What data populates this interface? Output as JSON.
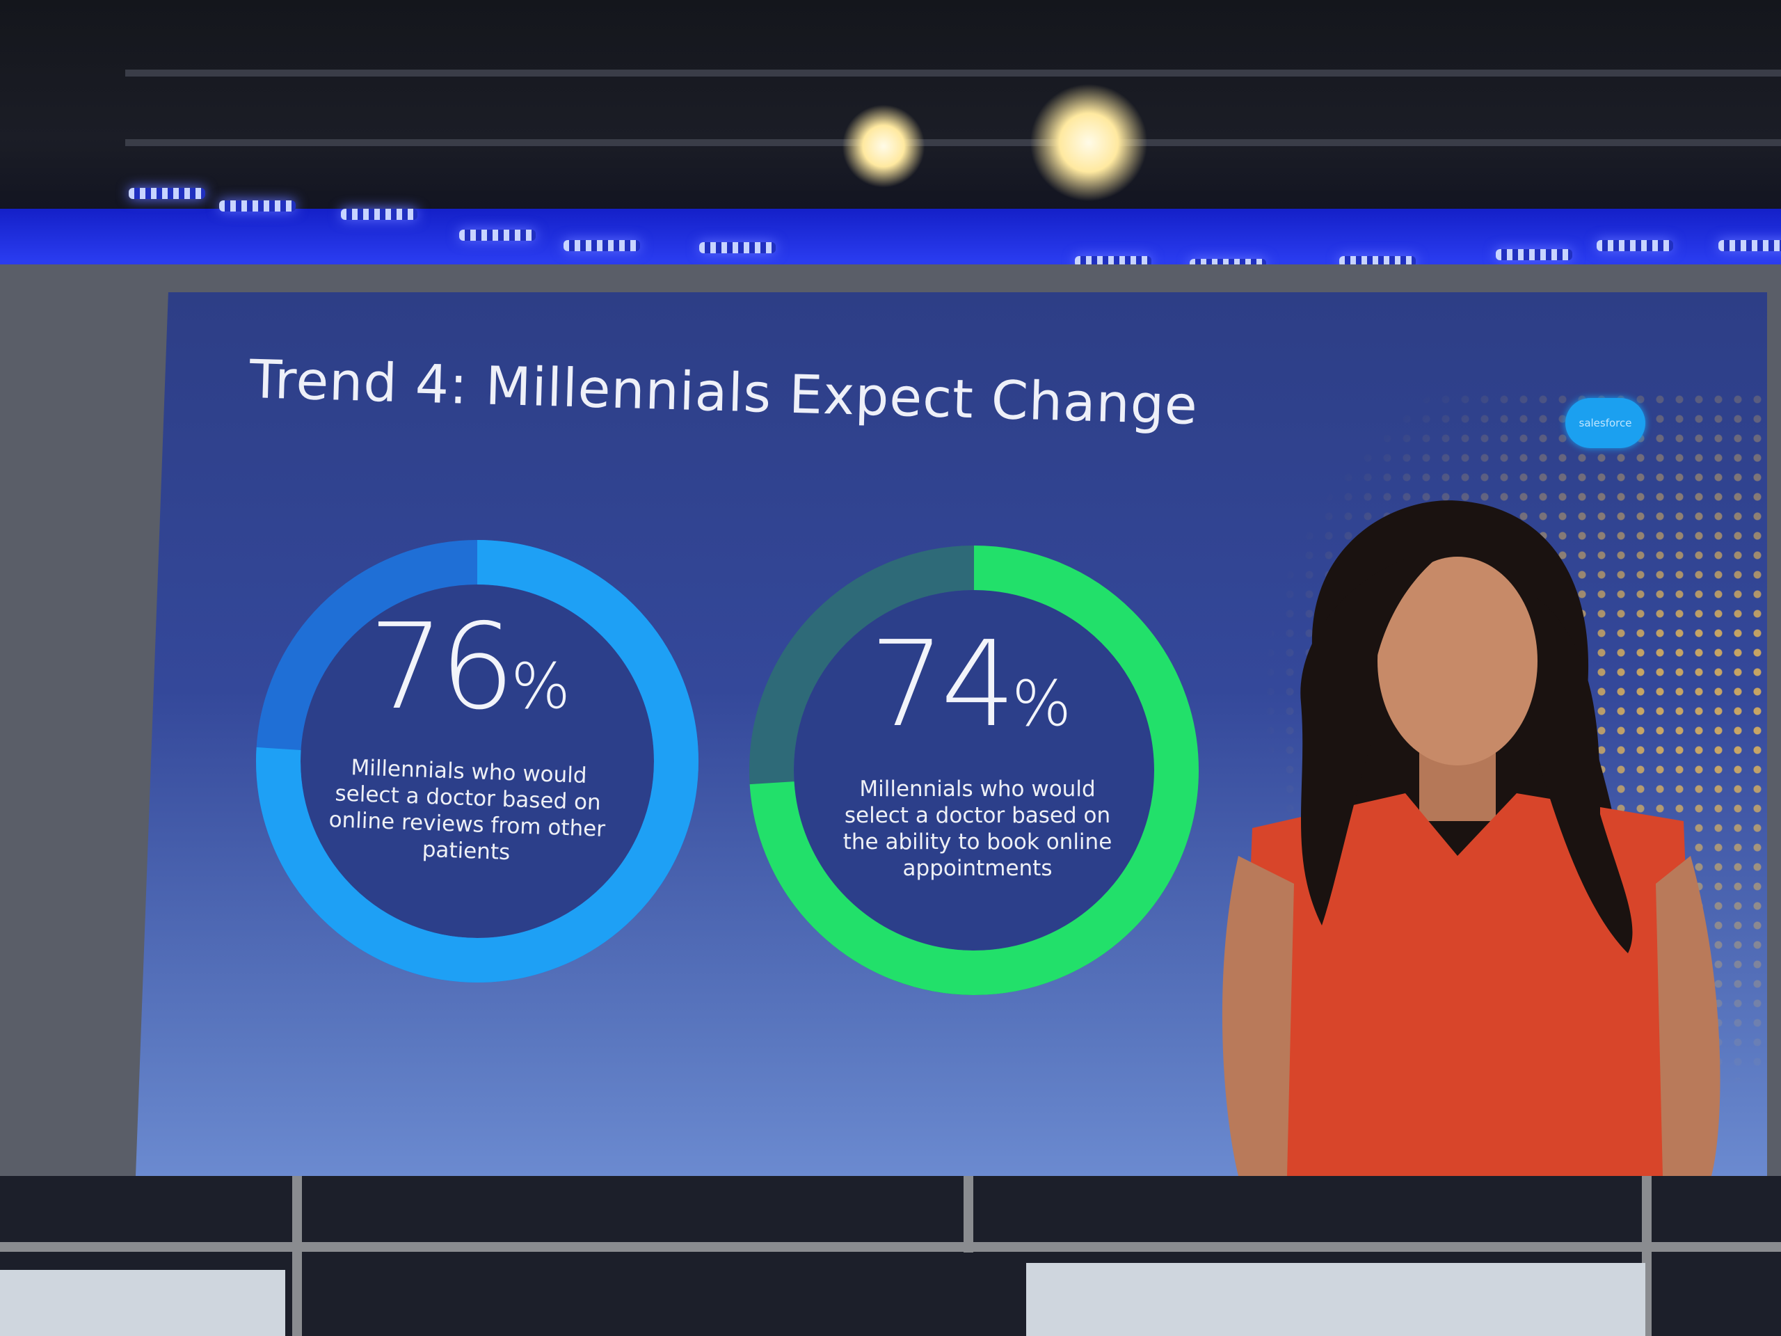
{
  "slide": {
    "title": "Trend 4: Millennials Expect Change",
    "logo_text": "salesforce"
  },
  "colors": {
    "blue_accent": "#1ea0f5",
    "blue_rest": "#1f6fd6",
    "green_accent": "#22e06a",
    "green_rest": "#2e6a78"
  },
  "chart_data": [
    {
      "type": "pie",
      "style": "donut",
      "value": 76,
      "unit": "%",
      "label_number": "76",
      "label_unit": "%",
      "caption": "Millennials who would select a doctor based on online reviews from other patients",
      "color": "#1ea0f5"
    },
    {
      "type": "pie",
      "style": "donut",
      "value": 74,
      "unit": "%",
      "label_number": "74",
      "label_unit": "%",
      "caption": "Millennials who would select a doctor based on the ability to book online appointments",
      "color": "#22e06a"
    }
  ]
}
